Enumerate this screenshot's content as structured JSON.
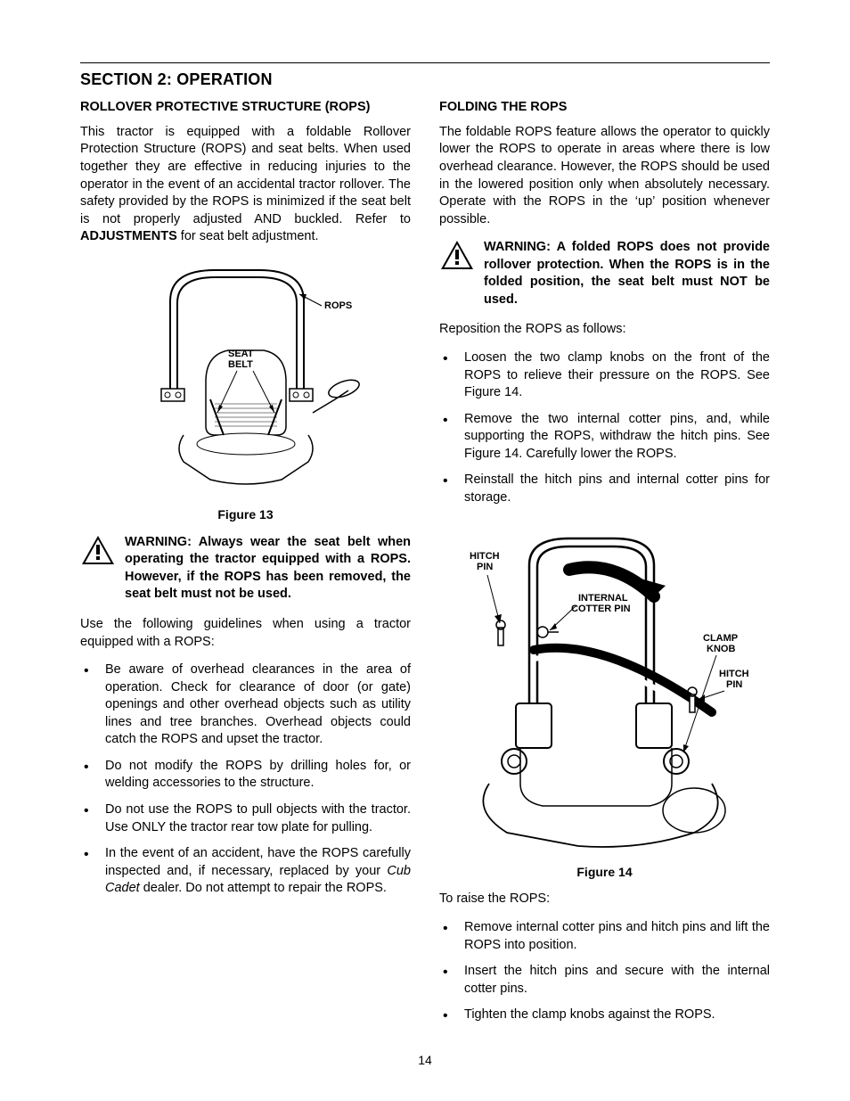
{
  "page_number": "14",
  "section_title": "SECTION 2: OPERATION",
  "left": {
    "heading": "ROLLOVER PROTECTIVE STRUCTURE (ROPS)",
    "intro_before_bold": "This tractor is equipped with a foldable Rollover Protection Structure (ROPS) and seat belts. When used together they are effective in reducing injuries to the operator in the event of an accidental tractor rollover. The safety provided by the ROPS is minimized if the seat belt is not properly adjusted AND buckled. Refer to ",
    "intro_bold": "ADJUSTMENTS",
    "intro_after_bold": " for seat belt adjustment.",
    "fig13_caption": "Figure 13",
    "fig13_labels": {
      "rops": "ROPS",
      "seat_belt_1": "SEAT",
      "seat_belt_2": "BELT"
    },
    "warning1": "WARNING: Always wear the seat belt when operating the tractor equipped with a ROPS. However, if the ROPS has been removed, the seat belt must not be used.",
    "guidelines_intro": "Use the following guidelines when using a tractor equipped with a ROPS:",
    "bullets": [
      "Be aware of overhead clearances in the area of operation. Check for clearance of door (or gate) openings and other overhead objects such as utility lines and tree branches. Overhead objects could catch the ROPS and upset the tractor.",
      "Do not modify the ROPS by drilling holes for, or welding accessories to the structure.",
      "Do not use the ROPS to pull objects with the tractor. Use ONLY the tractor rear tow plate for pulling.",
      "In the event of an accident, have the ROPS carefully inspected and, if necessary, replaced by your |Cub Cadet| dealer. Do not attempt to repair the ROPS."
    ]
  },
  "right": {
    "heading": "FOLDING THE ROPS",
    "intro": "The foldable ROPS feature allows the operator to quickly lower the ROPS to operate in areas where there is low overhead clearance. However, the ROPS should be used in the lowered position only when absolutely necessary. Operate with the ROPS in the ‘up’ position whenever possible.",
    "warning2": "WARNING: A folded ROPS does not provide rollover protection. When the ROPS is in the folded position, the seat belt must NOT be used.",
    "reposition_intro": "Reposition the ROPS as follows:",
    "bullets_lower": [
      "Loosen the two clamp knobs on the front of the ROPS to relieve their pressure on the ROPS. See Figure 14.",
      "Remove the two internal cotter pins, and, while supporting the ROPS, withdraw the hitch pins. See Figure 14. Carefully lower the ROPS.",
      "Reinstall the hitch pins and internal cotter pins for storage."
    ],
    "fig14_caption": "Figure 14",
    "fig14_labels": {
      "hitch_pin_1a": "HITCH",
      "hitch_pin_1b": "PIN",
      "internal_1": "INTERNAL",
      "internal_2": "COTTER PIN",
      "clamp_1": "CLAMP",
      "clamp_2": "KNOB",
      "hitch_pin_2a": "HITCH",
      "hitch_pin_2b": "PIN"
    },
    "raise_intro": "To raise the ROPS:",
    "bullets_raise": [
      "Remove internal cotter pins and hitch pins and lift the ROPS into position.",
      "Insert the hitch pins and secure with the internal cotter pins.",
      "Tighten the clamp knobs against the ROPS."
    ]
  },
  "colors": {
    "text": "#000000",
    "bg": "#ffffff"
  }
}
